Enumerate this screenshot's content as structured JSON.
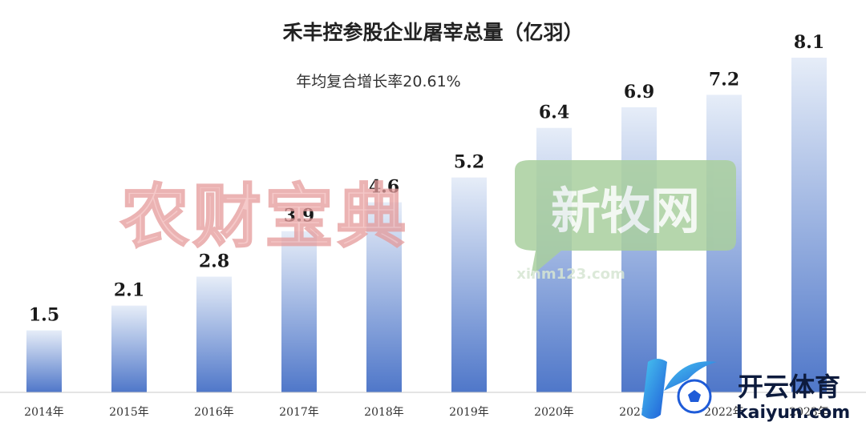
{
  "chart_data": {
    "type": "bar",
    "title": "禾丰控参股企业屠宰总量（亿羽）",
    "subtitle": "年均复合增长率20.61%",
    "categories": [
      "2014年",
      "2015年",
      "2016年",
      "2017年",
      "2018年",
      "2019年",
      "2020年",
      "2021年",
      "2022年",
      "2023年"
    ],
    "values": [
      1.5,
      2.1,
      2.8,
      3.9,
      4.6,
      5.2,
      6.4,
      6.9,
      7.2,
      8.1
    ],
    "value_labels": [
      "1.5",
      "2.1",
      "2.8",
      "3.9",
      "4.6",
      "5.2",
      "6.4",
      "6.9",
      "7.2",
      "8.1"
    ],
    "ylim": [
      0,
      8.1
    ],
    "grid": false,
    "bar_color_top": "#e6edf8",
    "bar_color_bottom": "#4f77c9"
  },
  "watermarks": {
    "wm1_text": "农财宝典",
    "wm2_text": "新牧网",
    "wm2_url": "xinm123.com",
    "logo_text": "开云体育",
    "logo_url": "kaiyun.com"
  }
}
